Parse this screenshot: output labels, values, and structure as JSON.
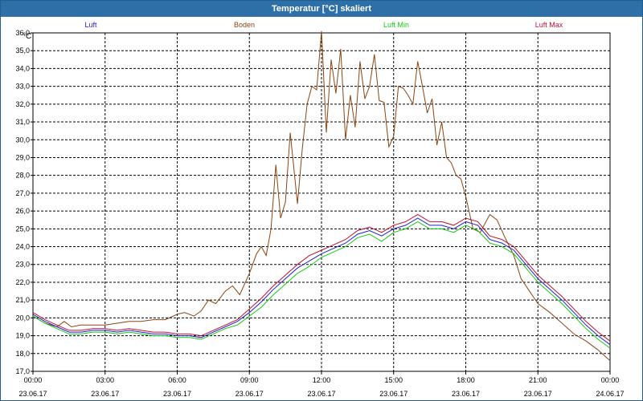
{
  "window": {
    "title": "Temperatur [°C] skaliert"
  },
  "colors": {
    "luft": "#1f1fcc",
    "boden": "#8b4513",
    "luft_min": "#12c812",
    "luft_max": "#c01030",
    "grid": "#000000",
    "title_bg": "#2f6fa7"
  },
  "chart_data": {
    "type": "line",
    "title": "Temperatur [°C] skaliert",
    "ylabel": "°C",
    "xlabel": "",
    "ylim": [
      17.0,
      36.0
    ],
    "xlim": [
      0,
      24
    ],
    "grid": true,
    "legend_placement": "top",
    "y_ticks": [
      "17,0",
      "18,0",
      "19,0",
      "20,0",
      "21,0",
      "22,0",
      "23,0",
      "24,0",
      "25,0",
      "26,0",
      "27,0",
      "28,0",
      "29,0",
      "30,0",
      "31,0",
      "32,0",
      "33,0",
      "34,0",
      "35,0",
      "36,0"
    ],
    "x_ticks": [
      {
        "time": "00:00",
        "date": "23.06.17"
      },
      {
        "time": "03:00",
        "date": "23.06.17"
      },
      {
        "time": "06:00",
        "date": "23.06.17"
      },
      {
        "time": "09:00",
        "date": "23.06.17"
      },
      {
        "time": "12:00",
        "date": "23.06.17"
      },
      {
        "time": "15:00",
        "date": "23.06.17"
      },
      {
        "time": "18:00",
        "date": "23.06.17"
      },
      {
        "time": "21:00",
        "date": "23.06.17"
      },
      {
        "time": "00:00",
        "date": "24.06.17"
      }
    ],
    "series": [
      {
        "name": "Luft",
        "key": "luft",
        "x": [
          0,
          0.5,
          1,
          1.5,
          2,
          2.5,
          3,
          3.5,
          4,
          4.5,
          5,
          5.5,
          6,
          6.5,
          7,
          7.5,
          8,
          8.5,
          9,
          9.5,
          10,
          10.5,
          11,
          11.5,
          12,
          12.5,
          13,
          13.5,
          14,
          14.5,
          15,
          15.5,
          16,
          16.5,
          17,
          17.5,
          18,
          18.5,
          19,
          19.5,
          20,
          20.5,
          21,
          21.5,
          22,
          22.5,
          23,
          23.5,
          24
        ],
        "values": [
          20.2,
          19.8,
          19.5,
          19.2,
          19.2,
          19.3,
          19.3,
          19.2,
          19.3,
          19.2,
          19.1,
          19.1,
          19.0,
          19.0,
          18.9,
          19.2,
          19.5,
          19.8,
          20.3,
          20.9,
          21.6,
          22.2,
          22.8,
          23.2,
          23.6,
          23.9,
          24.2,
          24.7,
          24.9,
          24.6,
          25.0,
          25.2,
          25.6,
          25.2,
          25.2,
          25.0,
          25.4,
          25.2,
          24.4,
          24.2,
          23.8,
          23.0,
          22.2,
          21.6,
          21.0,
          20.3,
          19.6,
          19.0,
          18.5
        ]
      },
      {
        "name": "Boden",
        "key": "boden",
        "x": [
          0,
          0.5,
          1,
          1.3,
          1.6,
          2,
          2.5,
          3,
          3.5,
          4,
          4.5,
          5,
          5.5,
          6,
          6.3,
          6.7,
          7,
          7.3,
          7.6,
          8,
          8.3,
          8.6,
          9,
          9.3,
          9.5,
          9.7,
          9.9,
          10.1,
          10.3,
          10.5,
          10.7,
          11,
          11.2,
          11.4,
          11.6,
          11.8,
          12,
          12.2,
          12.4,
          12.6,
          12.8,
          13,
          13.2,
          13.4,
          13.6,
          13.8,
          14,
          14.2,
          14.4,
          14.6,
          14.8,
          15,
          15.2,
          15.4,
          15.6,
          15.8,
          16,
          16.2,
          16.4,
          16.6,
          16.8,
          17,
          17.2,
          17.4,
          17.6,
          17.8,
          18,
          18.3,
          18.6,
          19,
          19.3,
          19.6,
          20,
          20.3,
          20.6,
          21,
          21.5,
          22,
          22.5,
          23,
          23.5,
          24
        ],
        "values": [
          20.1,
          19.7,
          19.5,
          19.8,
          19.5,
          19.6,
          19.6,
          19.6,
          19.7,
          19.8,
          19.8,
          19.9,
          19.9,
          20.2,
          20.3,
          20.1,
          20.4,
          21.0,
          20.8,
          21.5,
          21.8,
          21.3,
          22.5,
          23.6,
          24.0,
          23.5,
          25.0,
          28.6,
          25.6,
          26.5,
          30.4,
          26.4,
          29.5,
          32.0,
          33.0,
          32.8,
          36.1,
          30.4,
          34.5,
          32.6,
          35.1,
          30.0,
          32.5,
          30.7,
          34.4,
          32.3,
          33.0,
          34.8,
          32.2,
          32.1,
          29.6,
          30.2,
          33.0,
          32.9,
          32.5,
          32.0,
          34.4,
          33.0,
          31.5,
          32.3,
          29.7,
          31.0,
          29.0,
          28.7,
          28.0,
          27.8,
          26.8,
          25.0,
          24.8,
          25.8,
          25.5,
          24.6,
          23.5,
          22.2,
          21.6,
          20.8,
          20.3,
          19.7,
          19.1,
          18.7,
          18.2,
          17.6
        ]
      },
      {
        "name": "Luft Min",
        "key": "luft_min",
        "x": [
          0,
          0.5,
          1,
          1.5,
          2,
          2.5,
          3,
          3.5,
          4,
          4.5,
          5,
          5.5,
          6,
          6.5,
          7,
          7.5,
          8,
          8.5,
          9,
          9.5,
          10,
          10.5,
          11,
          11.5,
          12,
          12.5,
          13,
          13.5,
          14,
          14.5,
          15,
          15.5,
          16,
          16.5,
          17,
          17.5,
          18,
          18.5,
          19,
          19.5,
          20,
          20.5,
          21,
          21.5,
          22,
          22.5,
          23,
          23.5,
          24
        ],
        "values": [
          20.1,
          19.7,
          19.4,
          19.1,
          19.1,
          19.2,
          19.2,
          19.1,
          19.2,
          19.1,
          19.0,
          19.0,
          18.9,
          18.9,
          18.8,
          19.1,
          19.4,
          19.6,
          20.1,
          20.6,
          21.3,
          21.9,
          22.5,
          22.9,
          23.4,
          23.7,
          24.0,
          24.5,
          24.7,
          24.3,
          24.8,
          25.0,
          25.4,
          25.0,
          25.0,
          24.8,
          25.2,
          24.9,
          24.2,
          24.0,
          23.6,
          22.8,
          22.0,
          21.4,
          20.8,
          20.1,
          19.4,
          18.8,
          18.3
        ]
      },
      {
        "name": "Luft Max",
        "key": "luft_max",
        "x": [
          0,
          0.5,
          1,
          1.5,
          2,
          2.5,
          3,
          3.5,
          4,
          4.5,
          5,
          5.5,
          6,
          6.5,
          7,
          7.5,
          8,
          8.5,
          9,
          9.5,
          10,
          10.5,
          11,
          11.5,
          12,
          12.5,
          13,
          13.5,
          14,
          14.5,
          15,
          15.5,
          16,
          16.5,
          17,
          17.5,
          18,
          18.5,
          19,
          19.5,
          20,
          20.5,
          21,
          21.5,
          22,
          22.5,
          23,
          23.5,
          24
        ],
        "values": [
          20.3,
          19.9,
          19.6,
          19.3,
          19.3,
          19.4,
          19.4,
          19.3,
          19.4,
          19.3,
          19.2,
          19.2,
          19.1,
          19.1,
          19.0,
          19.3,
          19.6,
          19.9,
          20.5,
          21.1,
          21.8,
          22.4,
          23.0,
          23.5,
          23.8,
          24.1,
          24.4,
          24.9,
          25.1,
          24.8,
          25.2,
          25.4,
          25.8,
          25.4,
          25.4,
          25.2,
          25.6,
          25.4,
          24.6,
          24.4,
          24.0,
          23.2,
          22.4,
          21.8,
          21.2,
          20.5,
          19.8,
          19.2,
          18.7
        ]
      }
    ]
  }
}
